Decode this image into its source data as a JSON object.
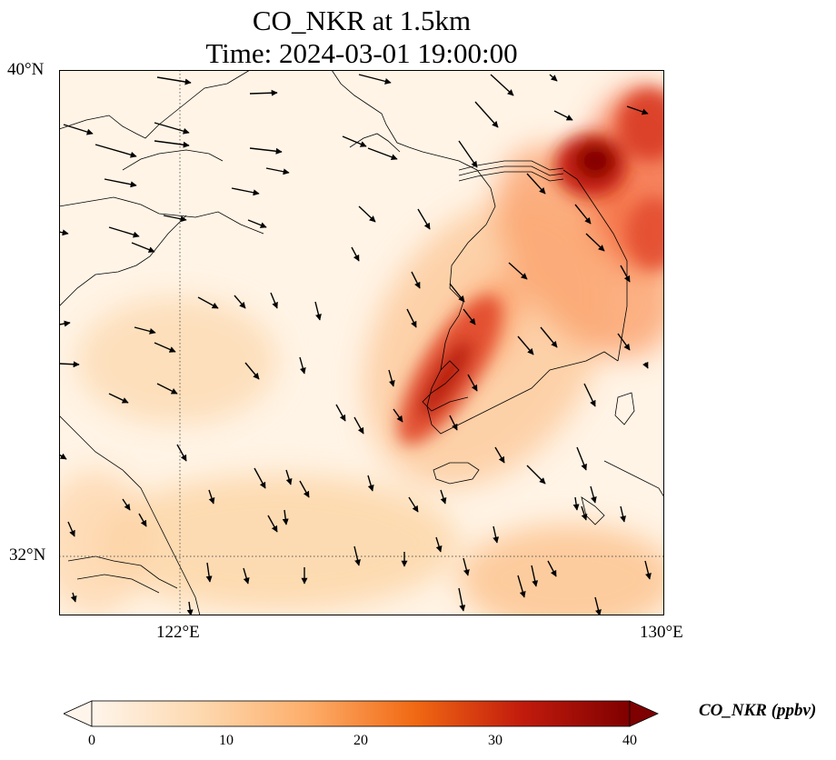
{
  "title": {
    "line1": "CO_NKR at 1.5km",
    "line2": "Time: 2024-03-01 19:00:00"
  },
  "map": {
    "lon_range_deg": [
      120,
      130
    ],
    "lat_range_deg": [
      31,
      40
    ],
    "lat_tick_labels": [
      "40°N",
      "32°N"
    ],
    "lon_tick_labels": [
      "122°E",
      "130°E"
    ],
    "gridlines": "dotted at 122°E and 32°N",
    "colormap": "white-orange-red",
    "plumes": [
      {
        "region": "western Korean peninsula / Seoul corridor",
        "peak_ppbv": 34
      },
      {
        "region": "Korea–China border (north-east)",
        "peak_ppbv": 38
      },
      {
        "region": "far north-east edge",
        "peak_ppbv": 30
      },
      {
        "region": "Shandong peninsula south-west",
        "peak_ppbv": 14
      }
    ],
    "wind_vectors": "dominant flow toward south-southeast"
  },
  "colorbar": {
    "label": "CO_NKR (ppbv)",
    "ticks": [
      "0",
      "10",
      "20",
      "30",
      "40"
    ],
    "min": 0,
    "max": 40,
    "extend": "both"
  }
}
